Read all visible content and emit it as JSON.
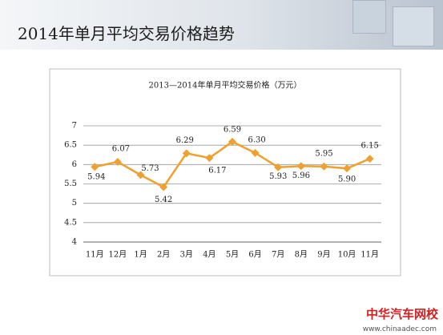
{
  "header": {
    "title": "2014年单月平均交易价格趋势"
  },
  "watermark": {
    "brand": "中华汽车网校",
    "url": "www.chinaadec.com"
  },
  "chart_data": {
    "type": "line",
    "title": "2013—2014年单月平均交易价格（万元）",
    "categories": [
      "11月",
      "12月",
      "1月",
      "2月",
      "3月",
      "4月",
      "5月",
      "6月",
      "7月",
      "8月",
      "9月",
      "10月",
      "11月"
    ],
    "values": [
      5.94,
      6.07,
      5.73,
      5.42,
      6.29,
      6.17,
      6.59,
      6.3,
      5.93,
      5.96,
      5.95,
      5.9,
      6.15
    ],
    "value_labels": [
      "5.94",
      "6.07",
      "5.73",
      "5.42",
      "6.29",
      "6.17",
      "6.59",
      "6.30",
      "5.93",
      "5.96",
      "5.95",
      "5.90",
      "6.15"
    ],
    "color": "#f0a030",
    "ylim": [
      4,
      7
    ],
    "yticks": [
      4,
      4.5,
      5,
      5.5,
      6,
      6.5,
      7
    ],
    "grid": true
  }
}
